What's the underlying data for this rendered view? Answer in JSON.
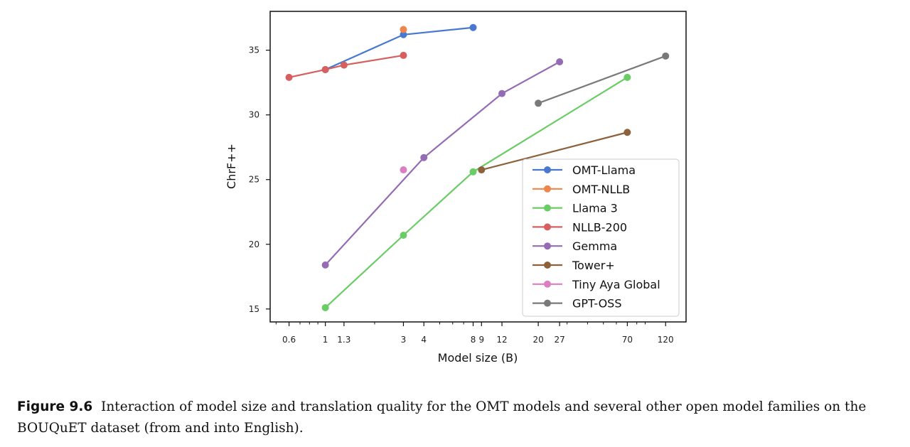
{
  "chart_data": {
    "type": "line",
    "xlabel": "Model size (B)",
    "ylabel": "ChrF++",
    "xscale": "log",
    "xlim": [
      0.46,
      160
    ],
    "ylim": [
      14.0,
      38.0
    ],
    "xticks": [
      0.6,
      1,
      1.3,
      3,
      4,
      8,
      9,
      12,
      20,
      27,
      70,
      120
    ],
    "xtick_labels": [
      "0.6",
      "1",
      "1.3",
      "3",
      "4",
      "8",
      "9",
      "12",
      "20",
      "27",
      "70",
      "120"
    ],
    "yticks": [
      15,
      20,
      25,
      30,
      35
    ],
    "ytick_labels": [
      "15",
      "20",
      "25",
      "30",
      "35"
    ],
    "grid": false,
    "legend_position": "lower-right",
    "series": [
      {
        "name": "OMT-Llama",
        "color": "#4878d0",
        "x": [
          1,
          3,
          8
        ],
        "y": [
          33.5,
          36.2,
          36.75
        ]
      },
      {
        "name": "OMT-NLLB",
        "color": "#ee854a",
        "x": [
          3
        ],
        "y": [
          36.6
        ]
      },
      {
        "name": "Llama 3",
        "color": "#6acc64",
        "x": [
          1,
          3,
          8,
          70
        ],
        "y": [
          15.1,
          20.7,
          25.6,
          32.9
        ]
      },
      {
        "name": "NLLB-200",
        "color": "#d65f5f",
        "x": [
          0.6,
          1,
          1.3,
          3
        ],
        "y": [
          32.9,
          33.5,
          33.85,
          34.6
        ]
      },
      {
        "name": "Gemma",
        "color": "#956cb4",
        "x": [
          1,
          4,
          12,
          27
        ],
        "y": [
          18.4,
          26.7,
          31.65,
          34.1
        ]
      },
      {
        "name": "Tower+",
        "color": "#8c613c",
        "x": [
          9,
          70
        ],
        "y": [
          25.75,
          28.65
        ]
      },
      {
        "name": "Tiny Aya Global",
        "color": "#dc7ec0",
        "x": [
          3
        ],
        "y": [
          25.75
        ]
      },
      {
        "name": "GPT-OSS",
        "color": "#797979",
        "x": [
          20,
          120
        ],
        "y": [
          30.9,
          34.55
        ]
      }
    ]
  },
  "caption": {
    "label": "Figure 9.6",
    "text": "Interaction of model size and translation quality for the OMT models and several other open model families on the BOUQuET dataset (from and into English)."
  }
}
